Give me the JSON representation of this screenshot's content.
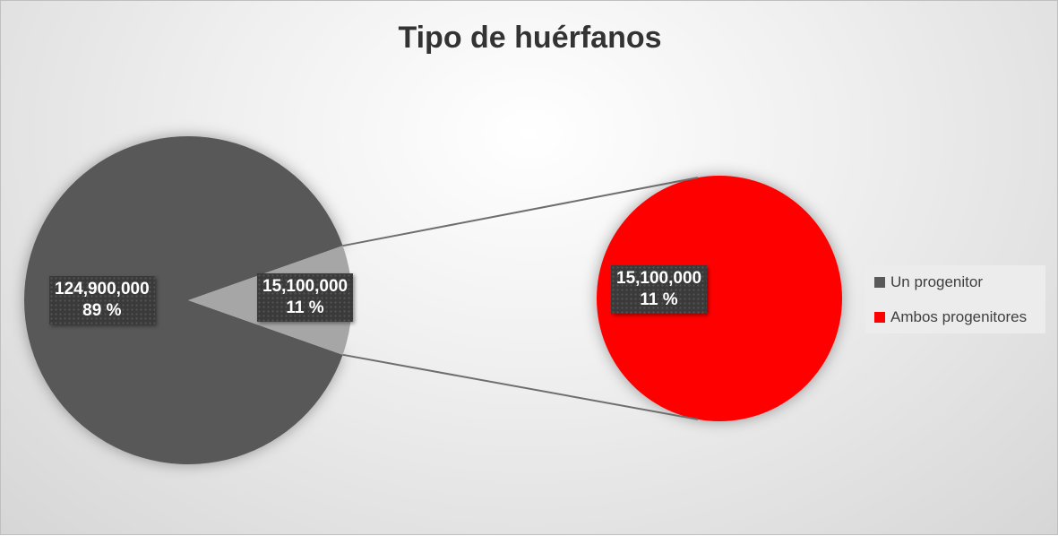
{
  "chart_data": {
    "type": "pie-of-pie",
    "title": "Tipo de huérfanos",
    "categories": [
      "Un progenitor",
      "Ambos progenitores"
    ],
    "values": [
      124900000,
      15100000
    ],
    "percent_labels": [
      "89 %",
      "11 %"
    ],
    "value_labels": [
      "124,900,000",
      "15,100,000"
    ],
    "colors": {
      "Un progenitor": "#595959",
      "Ambos progenitores": "#ff0000",
      "split_slice": "#a6a6a6"
    },
    "legend": {
      "position": "right",
      "entries": [
        "Un progenitor",
        "Ambos progenitores"
      ]
    }
  }
}
